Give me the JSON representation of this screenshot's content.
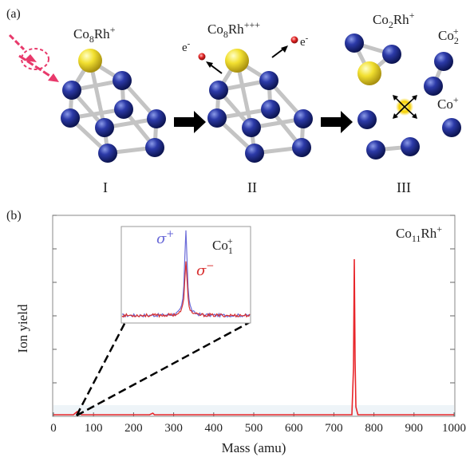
{
  "panel_a": {
    "label": "(a)",
    "cluster_I": {
      "formula_base": "Co",
      "formula_sub": "8",
      "formula_mid": "Rh",
      "formula_sup": "+",
      "roman": "I"
    },
    "cluster_II": {
      "formula_base": "Co",
      "formula_sub": "8",
      "formula_mid": "Rh",
      "formula_sup": "+++",
      "roman": "II"
    },
    "electron_left": {
      "base": "e",
      "sup": "-"
    },
    "electron_right": {
      "base": "e",
      "sup": "-"
    },
    "fragments": {
      "co2rh": {
        "base": "Co",
        "sub": "2",
        "mid": "Rh",
        "sup": "+"
      },
      "co2": {
        "base": "Co",
        "sub": "2",
        "sup": "+"
      },
      "co": {
        "base": "Co",
        "sup": "+"
      },
      "roman": "III"
    },
    "colors": {
      "cobalt": "#1c2a8c",
      "rhodium": "#e6d21c",
      "laser": "#e8396b",
      "arrow": "#000000",
      "electron": "#e02020",
      "bond": "#c8c8c8"
    }
  },
  "panel_b": {
    "label": "(b)",
    "main_annotation": {
      "base": "Co",
      "sub": "11",
      "mid": "Rh",
      "sup": "+"
    },
    "inset_annotation": {
      "base": "Co",
      "sub": "1",
      "sup": "+"
    },
    "inset_sigma_plus": {
      "base": "σ",
      "sup": "+"
    },
    "inset_sigma_minus": {
      "base": "σ",
      "sup": "−"
    }
  },
  "chart_data": {
    "type": "line",
    "xlabel": "Mass (amu)",
    "ylabel": "Ion yield",
    "xlim": [
      0,
      1000
    ],
    "xticks": [
      0,
      100,
      200,
      300,
      400,
      500,
      600,
      700,
      800,
      900,
      1000
    ],
    "series": [
      {
        "color": "#e8262b",
        "x": [
          0,
          50,
          59,
          70,
          100,
          240,
          248,
          252,
          260,
          700,
          745,
          749,
          751,
          753,
          755,
          760,
          800,
          1000
        ],
        "y": [
          0.0,
          0.0,
          0.02,
          0.0,
          0.0,
          0.0,
          0.01,
          0.0,
          0.0,
          0.0,
          0.0,
          0.3,
          1.0,
          0.35,
          0.05,
          0.0,
          0.0,
          0.0
        ]
      }
    ],
    "inset": {
      "series": [
        {
          "name": "σ+",
          "color": "#6a6ad8",
          "peak": 1.0
        },
        {
          "name": "σ−",
          "color": "#d83030",
          "peak": 0.62
        }
      ]
    }
  }
}
